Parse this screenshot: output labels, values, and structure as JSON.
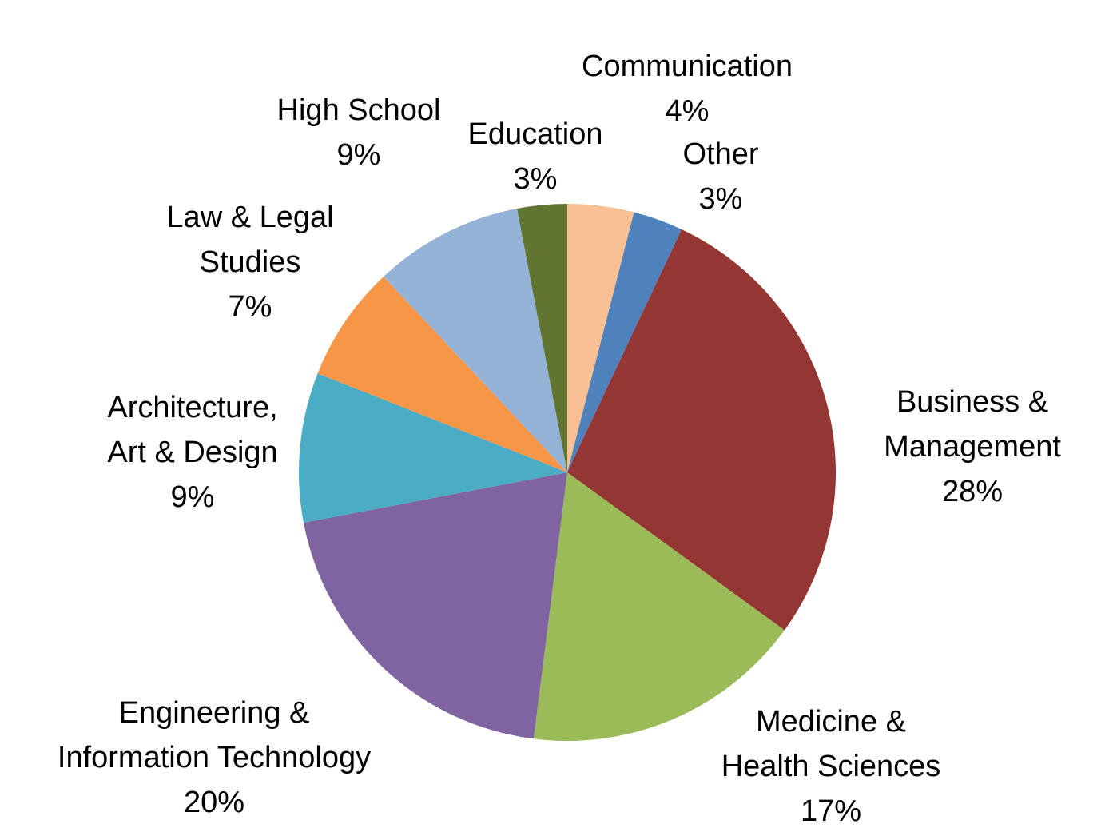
{
  "chart_data": {
    "type": "pie",
    "start_angle_deg": 0,
    "direction": "clockwise",
    "slices": [
      {
        "label_lines": [
          "Communication"
        ],
        "percent_label": "4%",
        "value": 4,
        "color": "#F9C193"
      },
      {
        "label_lines": [
          "Other"
        ],
        "percent_label": "3%",
        "value": 3,
        "color": "#4F81BD"
      },
      {
        "label_lines": [
          "Business &",
          "Management"
        ],
        "percent_label": "28%",
        "value": 28,
        "color": "#943634"
      },
      {
        "label_lines": [
          "Medicine &",
          "Health Sciences"
        ],
        "percent_label": "17%",
        "value": 17,
        "color": "#9BBB59"
      },
      {
        "label_lines": [
          "Engineering &",
          "Information Technology"
        ],
        "percent_label": "20%",
        "value": 20,
        "color": "#8064A2"
      },
      {
        "label_lines": [
          "Architecture,",
          "Art & Design"
        ],
        "percent_label": "9%",
        "value": 9,
        "color": "#4BACC6"
      },
      {
        "label_lines": [
          "Law & Legal",
          "Studies"
        ],
        "percent_label": "7%",
        "value": 7,
        "color": "#F79646"
      },
      {
        "label_lines": [
          "High School"
        ],
        "percent_label": "9%",
        "value": 9,
        "color": "#95B3D7"
      },
      {
        "label_lines": [
          "Education"
        ],
        "percent_label": "3%",
        "value": 3,
        "color": "#5F7530"
      }
    ]
  }
}
